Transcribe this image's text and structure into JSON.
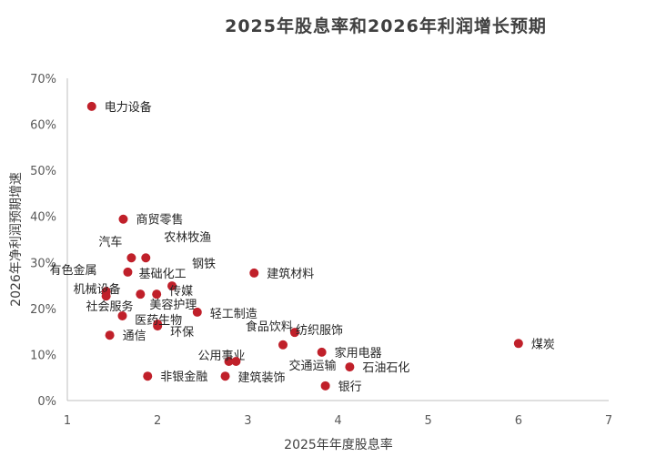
{
  "chart_data": {
    "type": "scatter",
    "title": "2025年股息率和2026年利润增长预期",
    "xlabel": "2025年年度股息率",
    "ylabel": "2026年净利润预期增速",
    "xlim": [
      1,
      7
    ],
    "ylim": [
      0,
      70
    ],
    "xticks": [
      "1",
      "2",
      "3",
      "4",
      "5",
      "6",
      "7"
    ],
    "yticks": [
      "0%",
      "10%",
      "20%",
      "30%",
      "40%",
      "50%",
      "60%",
      "70%"
    ],
    "grid": false,
    "color": "#C0202A",
    "points": [
      {
        "name": "电力设备",
        "x": 1.27,
        "y": 63.9
      },
      {
        "name": "商贸零售",
        "x": 1.62,
        "y": 39.4
      },
      {
        "name": "汽车",
        "x": 1.71,
        "y": 31.0
      },
      {
        "name": "农林牧渔",
        "x": 1.87,
        "y": 31.0
      },
      {
        "name": "有色金属",
        "x": 1.67,
        "y": 27.9
      },
      {
        "name": "建筑材料",
        "x": 3.07,
        "y": 27.7
      },
      {
        "name": "钢铁",
        "x": 2.16,
        "y": 24.9
      },
      {
        "name": "机械设备",
        "x": 1.43,
        "y": 23.7
      },
      {
        "name": "基础化工",
        "x": 1.43,
        "y": 22.7
      },
      {
        "name": "美容护理",
        "x": 1.81,
        "y": 23.1
      },
      {
        "name": "传媒",
        "x": 1.99,
        "y": 23.1
      },
      {
        "name": "轻工制造",
        "x": 2.44,
        "y": 19.2
      },
      {
        "name": "社会服务",
        "x": 1.61,
        "y": 18.4
      },
      {
        "name": "环保",
        "x": 2.0,
        "y": 16.2
      },
      {
        "name": "医药生物",
        "x": 2.0,
        "y": 16.6
      },
      {
        "name": "通信",
        "x": 1.47,
        "y": 14.2
      },
      {
        "name": "食品饮料",
        "x": 3.52,
        "y": 14.8
      },
      {
        "name": "纺织服饰",
        "x": 3.39,
        "y": 12.1
      },
      {
        "name": "家用电器",
        "x": 3.82,
        "y": 10.5
      },
      {
        "name": "公用事业",
        "x": 2.79,
        "y": 8.5
      },
      {
        "name": "交通运输",
        "x": 2.87,
        "y": 8.5
      },
      {
        "name": "石油石化",
        "x": 4.13,
        "y": 7.3
      },
      {
        "name": "非银金融",
        "x": 1.89,
        "y": 5.3
      },
      {
        "name": "建筑装饰",
        "x": 2.75,
        "y": 5.3
      },
      {
        "name": "银行",
        "x": 3.86,
        "y": 3.2
      },
      {
        "name": "煤炭",
        "x": 6.0,
        "y": 12.4
      }
    ]
  }
}
